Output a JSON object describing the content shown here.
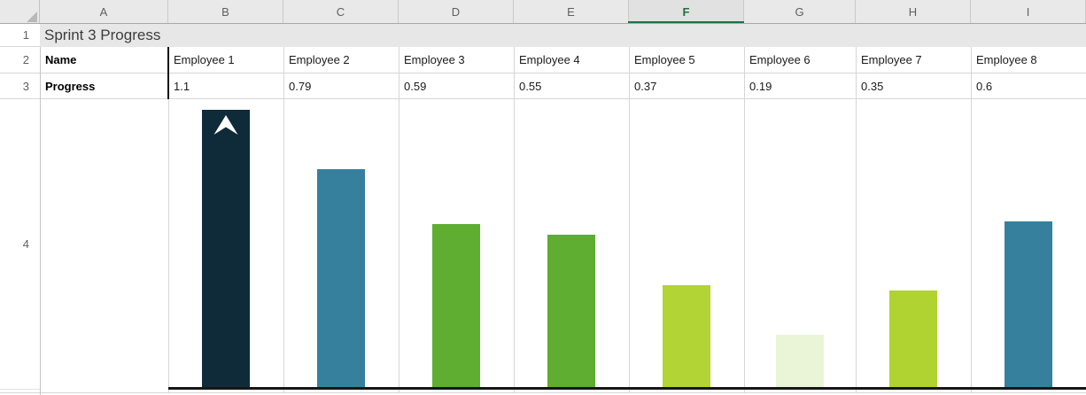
{
  "sheet": {
    "title": "Sprint 3 Progress",
    "name_label": "Name",
    "progress_label": "Progress",
    "headers": {
      "columns": [
        "A",
        "B",
        "C",
        "D",
        "E",
        "F",
        "G",
        "H",
        "I"
      ],
      "selected_column": "F",
      "rows": [
        "1",
        "2",
        "3",
        "4"
      ]
    },
    "employees": [
      {
        "name": "Employee 1",
        "progress": "1.1",
        "value": 1.1,
        "color": "#0f2a38",
        "clipped": true
      },
      {
        "name": "Employee 2",
        "progress": "0.79",
        "value": 0.79,
        "color": "#36809e",
        "clipped": false
      },
      {
        "name": "Employee 3",
        "progress": "0.59",
        "value": 0.59,
        "color": "#5fad31",
        "clipped": false
      },
      {
        "name": "Employee 4",
        "progress": "0.55",
        "value": 0.55,
        "color": "#5fad31",
        "clipped": false
      },
      {
        "name": "Employee 5",
        "progress": "0.37",
        "value": 0.37,
        "color": "#b2d434",
        "clipped": false
      },
      {
        "name": "Employee 6",
        "progress": "0.19",
        "value": 0.19,
        "color": "#eaf5d8",
        "clipped": false
      },
      {
        "name": "Employee 7",
        "progress": "0.35",
        "value": 0.35,
        "color": "#b0d331",
        "clipped": false
      },
      {
        "name": "Employee 8",
        "progress": "0.6",
        "value": 0.6,
        "color": "#36809e",
        "clipped": false
      }
    ],
    "colors": {
      "selection_green": "#1e7145",
      "header_bg": "#e9e9e9",
      "selected_header_bg": "#e1e1e1",
      "title_band_bg": "#e7e7e7",
      "gridline": "#d6d6d6",
      "baseline_black": "#161616"
    }
  },
  "chart_data": {
    "type": "bar",
    "title": "Sprint 3 Progress",
    "categories": [
      "Employee 1",
      "Employee 2",
      "Employee 3",
      "Employee 4",
      "Employee 5",
      "Employee 6",
      "Employee 7",
      "Employee 8"
    ],
    "values": [
      1.1,
      0.79,
      0.59,
      0.55,
      0.37,
      0.19,
      0.35,
      0.6
    ],
    "xlabel": "",
    "ylabel": "Progress",
    "ylim": [
      0,
      1.0
    ],
    "grid": false,
    "legend": "none",
    "bar_colors": [
      "#0f2a38",
      "#36809e",
      "#5fad31",
      "#5fad31",
      "#b2d434",
      "#eaf5d8",
      "#b0d331",
      "#36809e"
    ],
    "annotations": [
      "Employee 1 value 1.1 exceeds axis max 1.0; bar clipped with white up-arrow marker"
    ]
  }
}
